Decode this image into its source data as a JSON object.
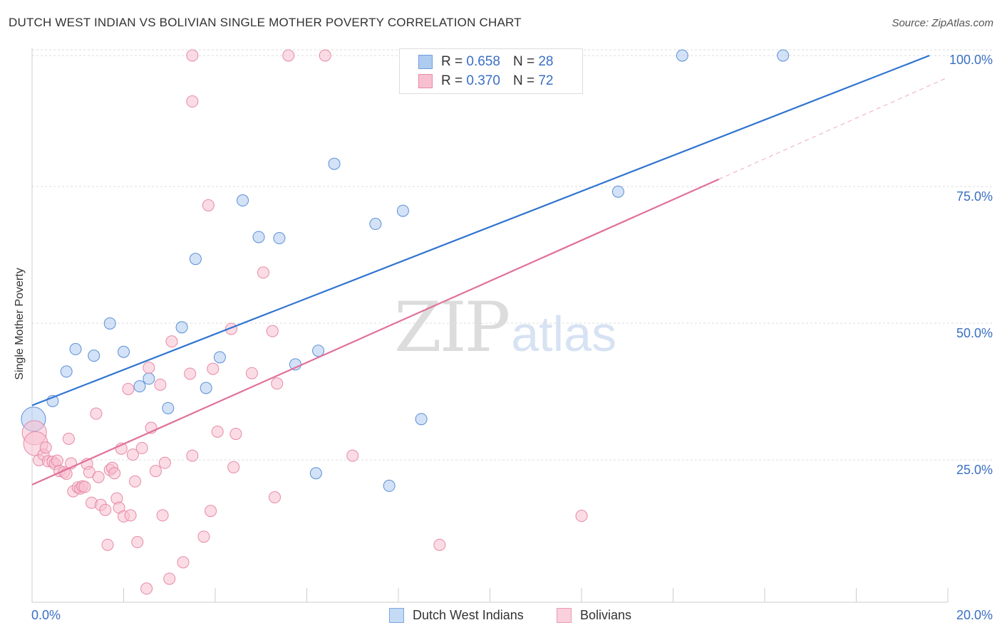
{
  "title": "DUTCH WEST INDIAN VS BOLIVIAN SINGLE MOTHER POVERTY CORRELATION CHART",
  "source": "Source: ZipAtlas.com",
  "watermark": {
    "part1": "ZIP",
    "part2": "atlas"
  },
  "legend": {
    "rows": [
      {
        "r_label": "R = ",
        "r_value": "0.658",
        "n_label": "N = ",
        "n_value": "28",
        "color": "#aecbf0",
        "border": "#6e9fdc"
      },
      {
        "r_label": "R = ",
        "r_value": "0.370",
        "n_label": "N = ",
        "n_value": "72",
        "color": "#f7c0d0",
        "border": "#e88aa8"
      }
    ]
  },
  "bottom_legend": [
    {
      "label": "Dutch West Indians",
      "color": "#c5daf5",
      "border": "#7aa6e0"
    },
    {
      "label": "Bolivians",
      "color": "#fad0dc",
      "border": "#ec9ab4"
    }
  ],
  "chart_data": {
    "type": "scatter",
    "title": "DUTCH WEST INDIAN VS BOLIVIAN SINGLE MOTHER POVERTY CORRELATION CHART",
    "xlabel": "",
    "ylabel": "Single Mother Poverty",
    "xlim": [
      0,
      20
    ],
    "ylim": [
      0,
      100
    ],
    "x_tick_labels": [
      {
        "value": 0,
        "label": "0.0%"
      },
      {
        "value": 20,
        "label": "20.0%"
      }
    ],
    "y_tick_labels": [
      {
        "value": 25,
        "label": "25.0%"
      },
      {
        "value": 50,
        "label": "50.0%"
      },
      {
        "value": 75,
        "label": "75.0%"
      },
      {
        "value": 100,
        "label": "100.0%"
      }
    ],
    "series": [
      {
        "name": "Dutch West Indians",
        "color": "#aecbf0",
        "stroke": "#5a8fd6",
        "line_color": "#2f74d0",
        "trend": {
          "x0": 0,
          "y0": 36,
          "x1": 19.6,
          "y1": 100,
          "dashed_from": null
        },
        "points": [
          [
            0.03,
            33.5,
            "large"
          ],
          [
            0.45,
            36.8
          ],
          [
            0.75,
            42.2
          ],
          [
            0.95,
            46.3
          ],
          [
            1.35,
            45.1
          ],
          [
            1.7,
            51.0
          ],
          [
            2.0,
            45.8
          ],
          [
            2.35,
            39.5
          ],
          [
            2.55,
            40.9
          ],
          [
            2.97,
            35.5
          ],
          [
            3.27,
            50.3
          ],
          [
            3.57,
            62.8
          ],
          [
            3.8,
            39.2
          ],
          [
            4.1,
            44.8
          ],
          [
            4.6,
            73.5
          ],
          [
            4.95,
            66.8
          ],
          [
            5.4,
            66.6
          ],
          [
            5.75,
            43.5
          ],
          [
            6.2,
            23.6
          ],
          [
            6.25,
            46.0
          ],
          [
            6.6,
            80.2
          ],
          [
            7.5,
            69.2
          ],
          [
            7.8,
            21.3
          ],
          [
            8.1,
            71.6
          ],
          [
            8.5,
            33.5
          ],
          [
            12.8,
            75.1
          ],
          [
            14.2,
            100.0
          ],
          [
            16.4,
            100.0
          ]
        ]
      },
      {
        "name": "Bolivians",
        "color": "#f7c0d0",
        "stroke": "#e68aa7",
        "line_color": "#e0709a",
        "trend": {
          "x0": 0,
          "y0": 21.5,
          "x1": 20,
          "y1": 96,
          "dashed_from": 15
        },
        "points": [
          [
            0.05,
            31.0,
            "large"
          ],
          [
            0.08,
            29.0,
            "large"
          ],
          [
            0.15,
            26.0
          ],
          [
            0.25,
            27.0
          ],
          [
            0.3,
            28.3
          ],
          [
            0.35,
            25.8
          ],
          [
            0.45,
            25.7
          ],
          [
            0.5,
            25.3
          ],
          [
            0.55,
            25.9
          ],
          [
            0.6,
            24.0
          ],
          [
            0.7,
            23.8
          ],
          [
            0.75,
            23.5
          ],
          [
            0.8,
            29.9
          ],
          [
            0.85,
            25.4
          ],
          [
            0.9,
            20.3
          ],
          [
            1.0,
            21.0
          ],
          [
            1.05,
            20.8
          ],
          [
            1.1,
            21.2
          ],
          [
            1.15,
            21.1
          ],
          [
            1.2,
            25.3
          ],
          [
            1.25,
            23.8
          ],
          [
            1.3,
            18.2
          ],
          [
            1.4,
            34.5
          ],
          [
            1.45,
            22.9
          ],
          [
            1.5,
            17.8
          ],
          [
            1.6,
            16.9
          ],
          [
            1.65,
            10.5
          ],
          [
            1.7,
            24.2
          ],
          [
            1.75,
            24.6
          ],
          [
            1.8,
            23.6
          ],
          [
            1.85,
            19.0
          ],
          [
            1.9,
            17.3
          ],
          [
            1.95,
            28.1
          ],
          [
            2.0,
            15.7
          ],
          [
            2.1,
            39.0
          ],
          [
            2.15,
            15.9
          ],
          [
            2.2,
            27.0
          ],
          [
            2.25,
            22.1
          ],
          [
            2.3,
            11.0
          ],
          [
            2.4,
            28.2
          ],
          [
            2.5,
            2.5
          ],
          [
            2.55,
            42.9
          ],
          [
            2.6,
            31.9
          ],
          [
            2.7,
            24.0
          ],
          [
            2.8,
            39.8
          ],
          [
            2.85,
            15.9
          ],
          [
            2.9,
            25.5
          ],
          [
            3.0,
            4.3
          ],
          [
            3.05,
            47.7
          ],
          [
            3.3,
            7.3
          ],
          [
            3.45,
            41.8
          ],
          [
            3.5,
            26.8
          ],
          [
            3.5,
            91.6
          ],
          [
            3.5,
            100.0
          ],
          [
            3.75,
            12.0
          ],
          [
            3.85,
            72.6
          ],
          [
            3.9,
            16.7
          ],
          [
            3.95,
            42.7
          ],
          [
            4.05,
            31.2
          ],
          [
            4.35,
            50.0
          ],
          [
            4.4,
            24.7
          ],
          [
            4.45,
            30.8
          ],
          [
            4.8,
            41.9
          ],
          [
            5.05,
            60.3
          ],
          [
            5.25,
            49.6
          ],
          [
            5.3,
            19.2
          ],
          [
            5.35,
            40.0
          ],
          [
            5.6,
            100.0
          ],
          [
            6.4,
            100.0
          ],
          [
            7.0,
            26.8
          ],
          [
            8.9,
            10.5
          ],
          [
            12.0,
            15.8
          ]
        ]
      }
    ],
    "legend_position": "top-center"
  }
}
